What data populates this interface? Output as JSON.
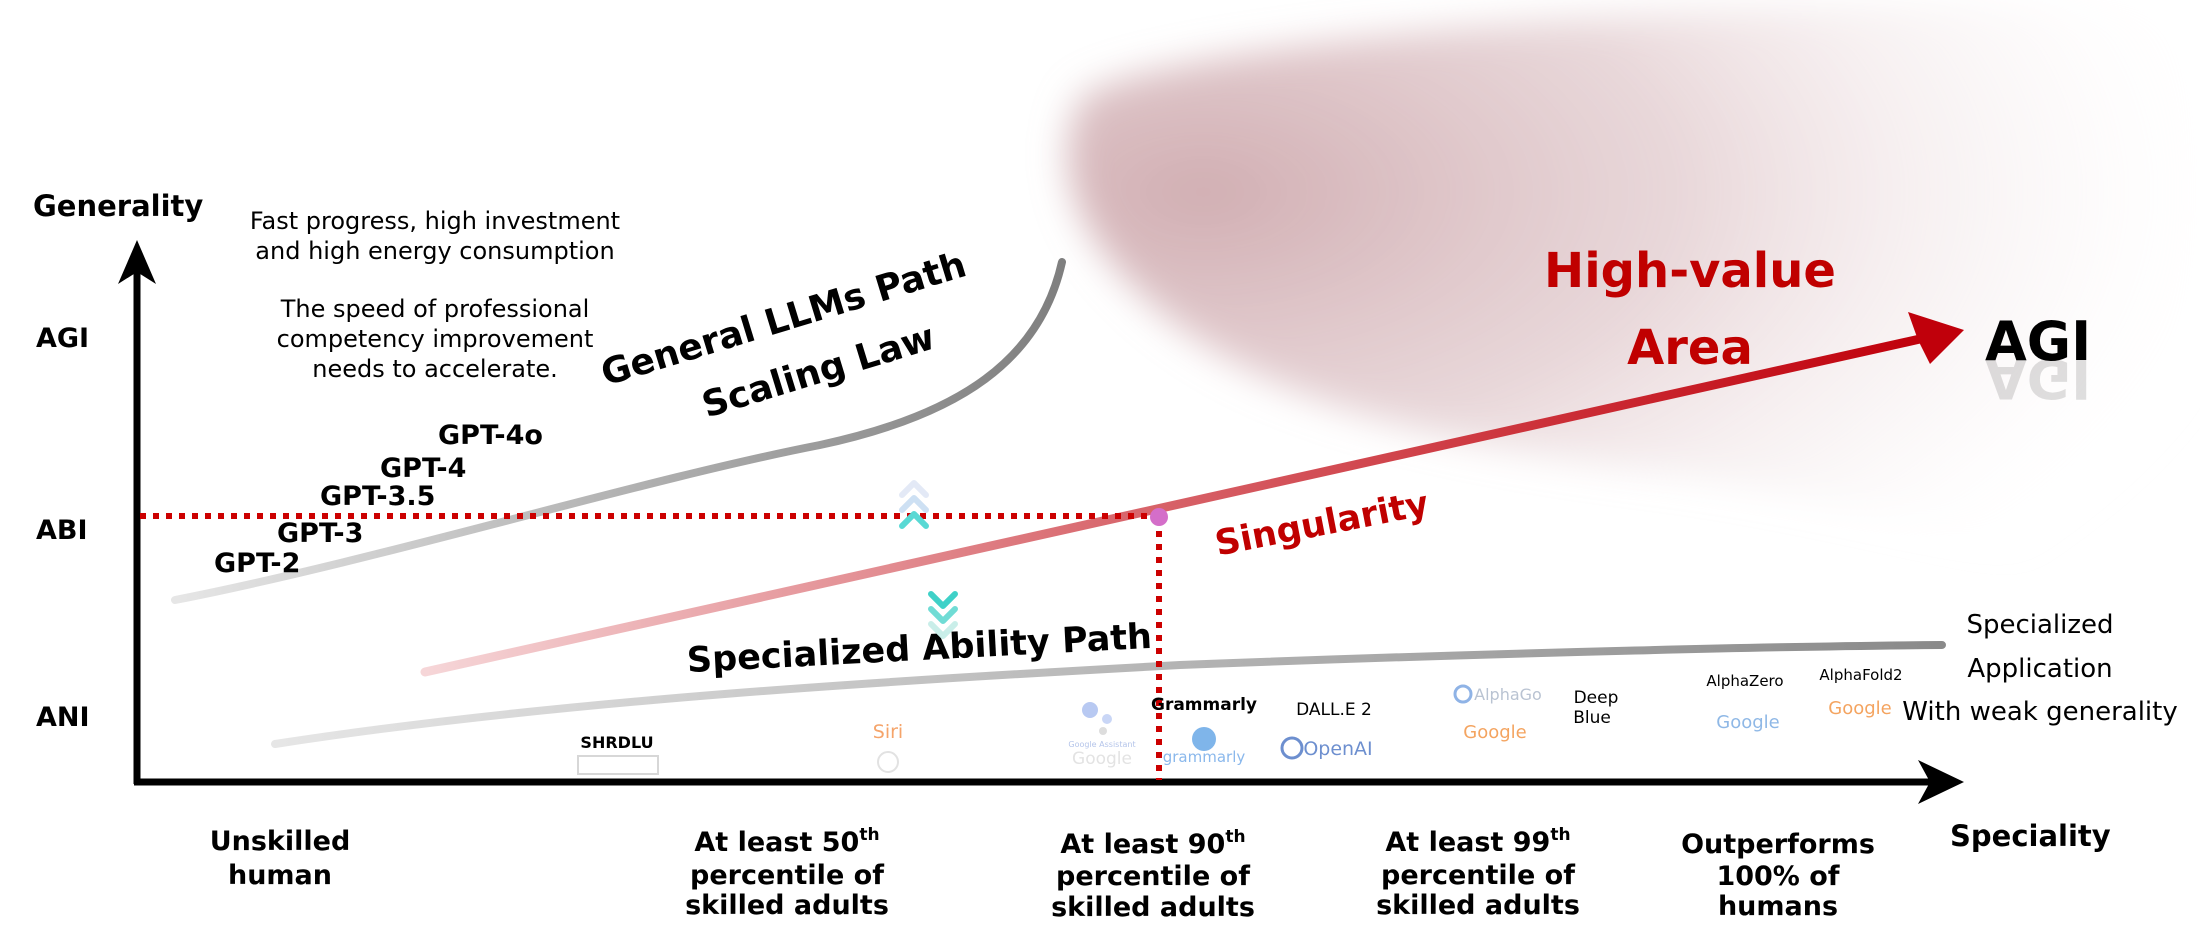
{
  "axes": {
    "y_title": "Generality",
    "x_title": "Speciality",
    "y_levels": [
      "AGI",
      "ABI",
      "ANI"
    ],
    "x_levels": [
      [
        "Unskilled",
        "human"
      ],
      [
        "At least 50",
        "th",
        "percentile of",
        "skilled adults"
      ],
      [
        "At least 90",
        "th",
        "percentile of",
        "skilled adults"
      ],
      [
        "At least 99",
        "th",
        "percentile of",
        "skilled adults"
      ],
      [
        "Outperforms",
        "100% of",
        "humans"
      ]
    ]
  },
  "notes": {
    "line1": "Fast progress, high investment",
    "line2": "and high energy consumption",
    "line3": "The speed of professional",
    "line4": "competency improvement",
    "line5": "needs to accelerate."
  },
  "paths": {
    "general_line1": "General LLMs Path",
    "general_line2": "Scaling Law",
    "specialized": "Specialized Ability Path",
    "singularity": "Singularity",
    "high_value_line1": "High-value",
    "high_value_line2": "Area",
    "agi": "AGI"
  },
  "models": [
    "GPT-2",
    "GPT-3",
    "GPT-3.5",
    "GPT-4",
    "GPT-4o"
  ],
  "specialized_note": [
    "Specialized",
    "Application",
    "With weak generality"
  ],
  "systems": {
    "shrdlu": "SHRDLU",
    "siri": "Siri",
    "google_assistant": "Google Assistant",
    "google": "Google",
    "grammarly": "Grammarly",
    "grammarly_logo": "grammarly",
    "dalle": "DALL.E 2",
    "openai": "OpenAI",
    "alphago": "AlphaGo",
    "deep_blue_1": "Deep",
    "deep_blue_2": "Blue",
    "alphazero": "AlphaZero",
    "alphafold": "AlphaFold2"
  },
  "colors": {
    "axis": "#000000",
    "general_path": "#8c8c8c",
    "agi_path": "#c0000b",
    "high_value_text": "#c00000",
    "dotted_line": "#cc0000",
    "singularity_dot": "#d46ec9",
    "region": "#c9a0a5",
    "google_orange": "#f4a460",
    "google_blue": "#6fa8dc",
    "openai_blue": "#3b63b8"
  }
}
